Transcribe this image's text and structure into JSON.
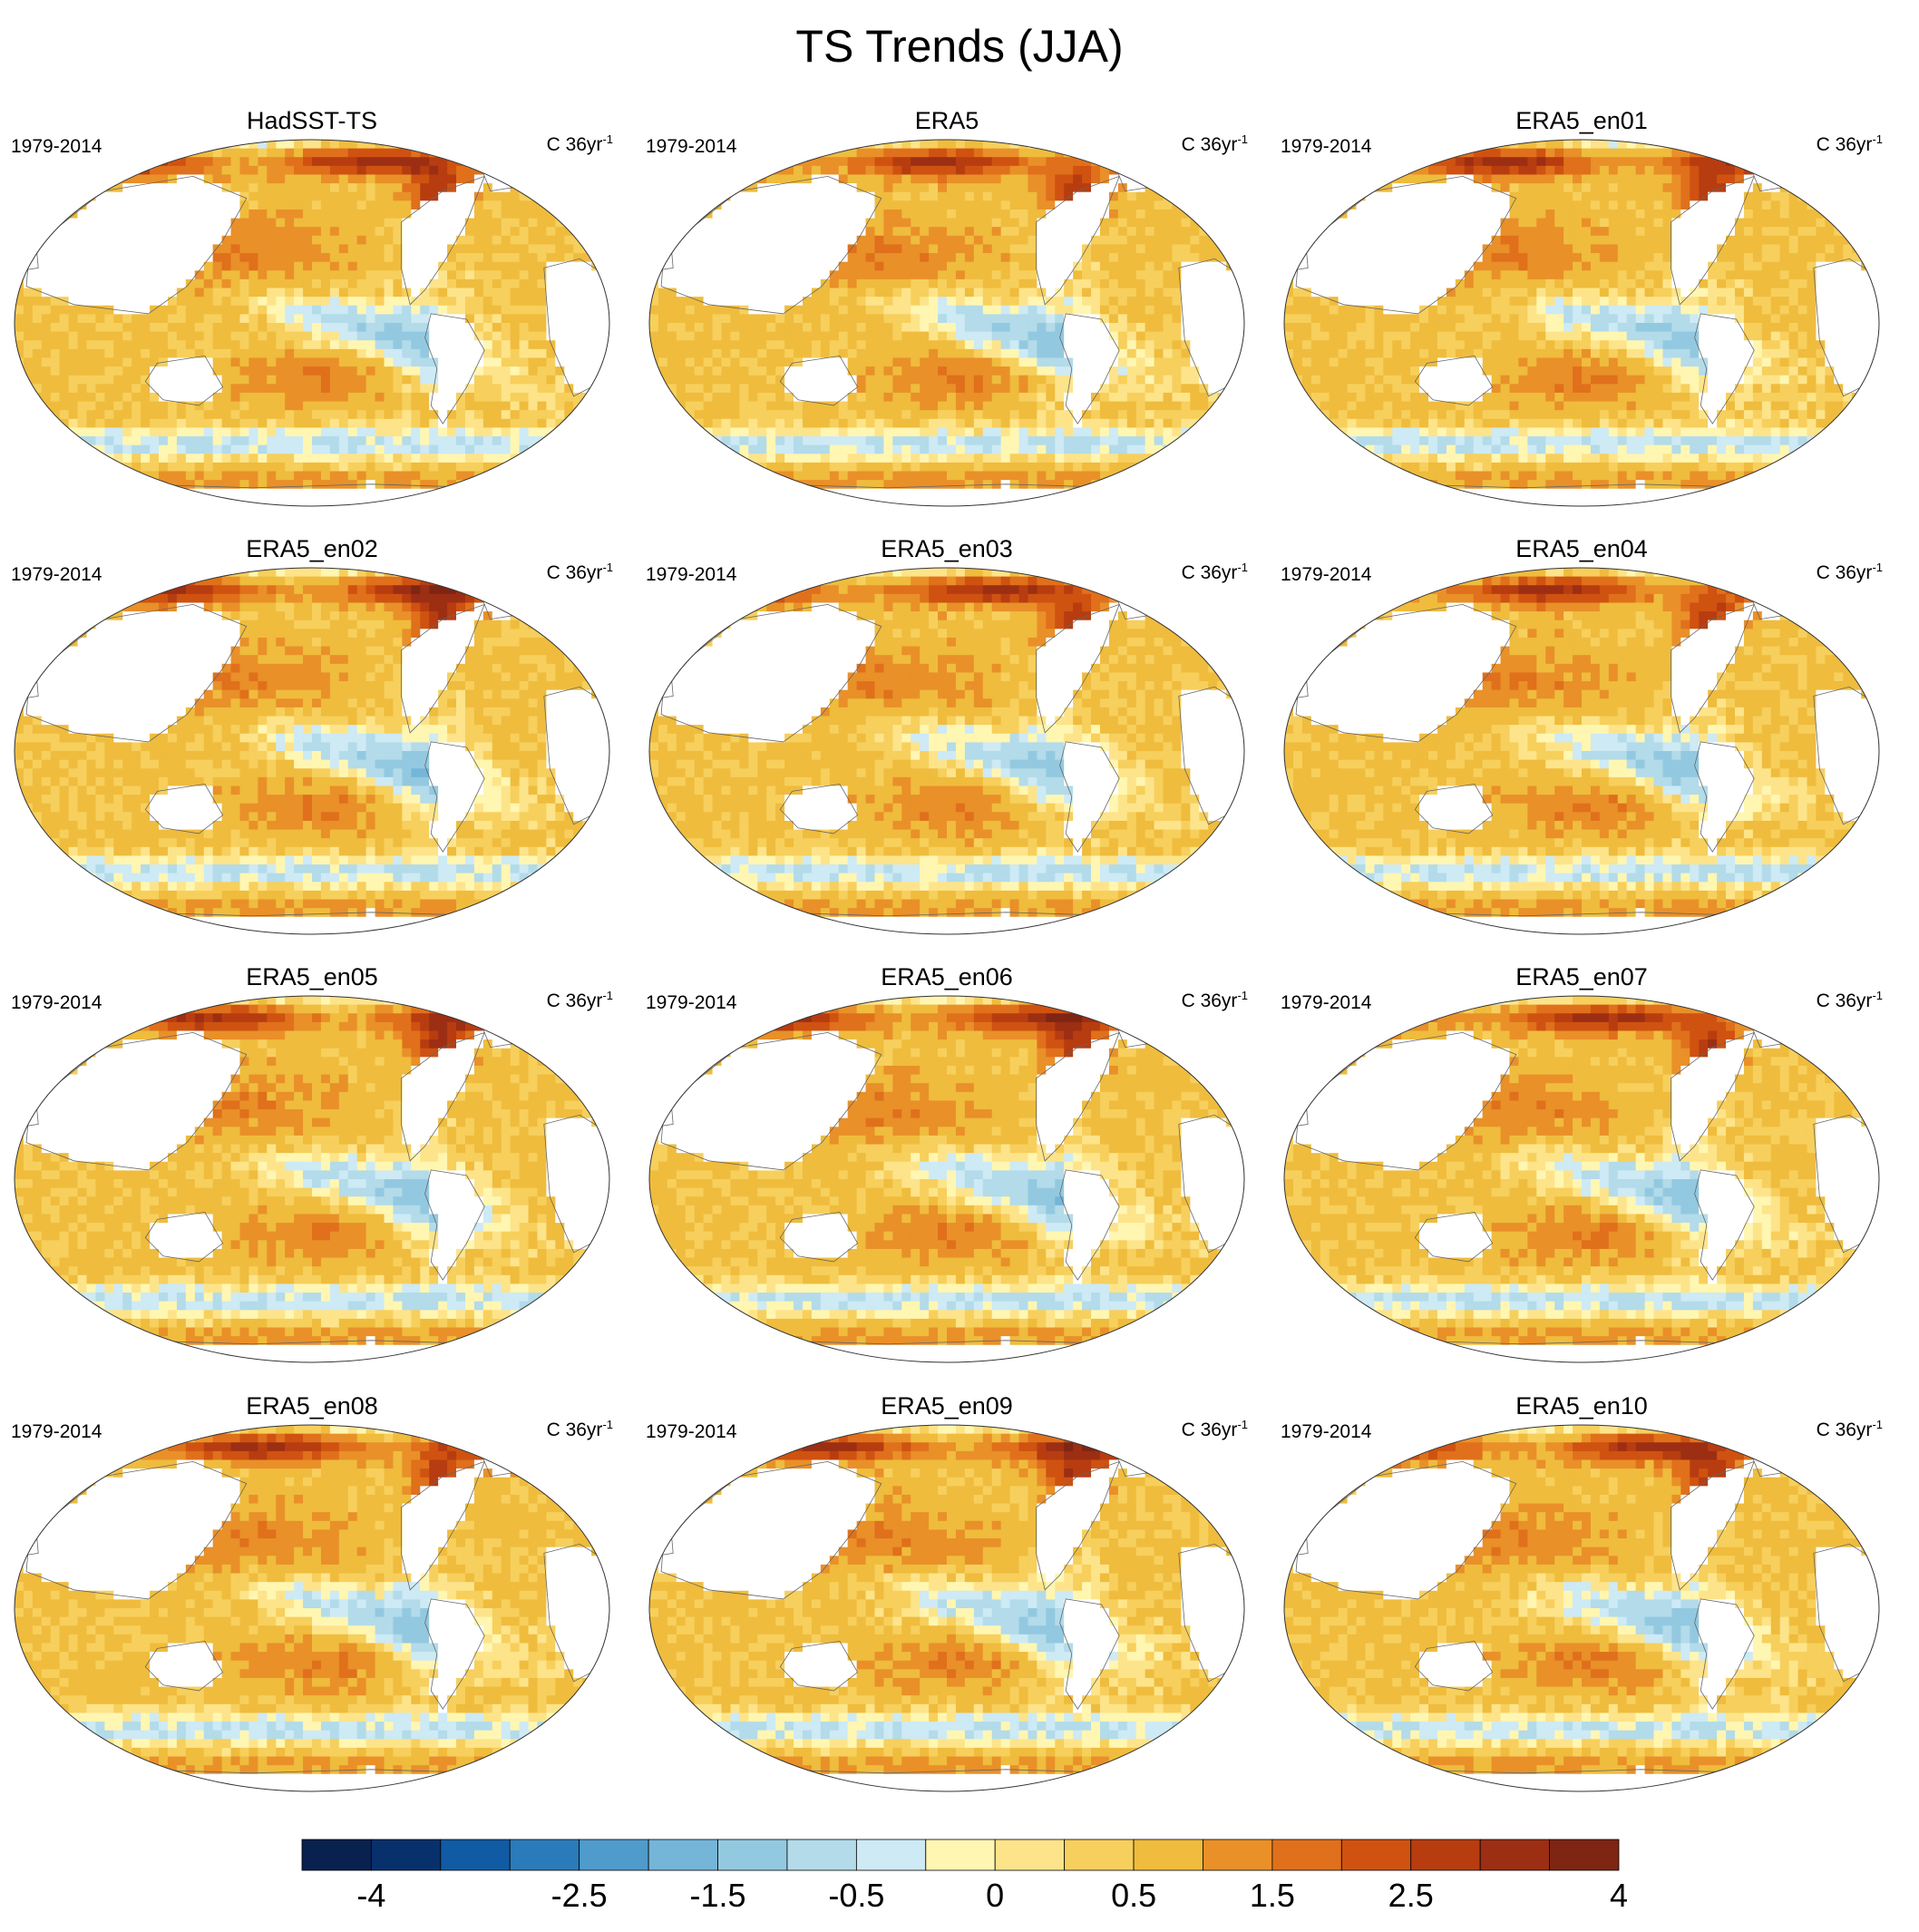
{
  "figure": {
    "title": "TS Trends (JJA)"
  },
  "chart_data": {
    "type": "heatmap",
    "title": "TS Trends (JJA)",
    "projection": "Robinson (Pacific-centered)",
    "period": "1979-2014",
    "units_prefix": "C 36yr",
    "units_exponent": "-1",
    "panels": [
      {
        "title": "HadSST-TS",
        "period": "1979-2014"
      },
      {
        "title": "ERA5",
        "period": "1979-2014"
      },
      {
        "title": "ERA5_en01",
        "period": "1979-2014"
      },
      {
        "title": "ERA5_en02",
        "period": "1979-2014"
      },
      {
        "title": "ERA5_en03",
        "period": "1979-2014"
      },
      {
        "title": "ERA5_en04",
        "period": "1979-2014"
      },
      {
        "title": "ERA5_en05",
        "period": "1979-2014"
      },
      {
        "title": "ERA5_en06",
        "period": "1979-2014"
      },
      {
        "title": "ERA5_en07",
        "period": "1979-2014"
      },
      {
        "title": "ERA5_en08",
        "period": "1979-2014"
      },
      {
        "title": "ERA5_en09",
        "period": "1979-2014"
      },
      {
        "title": "ERA5_en10",
        "period": "1979-2014"
      }
    ],
    "colorbar": {
      "levels": [
        -4,
        -3.5,
        -3,
        -2.5,
        -2,
        -1.5,
        -1,
        -0.5,
        -0.25,
        0,
        0.25,
        0.5,
        1,
        1.5,
        2,
        2.5,
        3,
        3.5,
        4
      ],
      "colors": [
        "#08214f",
        "#08306b",
        "#105ba4",
        "#2b7bba",
        "#4f9bcb",
        "#75b5d8",
        "#93c9e0",
        "#b3dbe9",
        "#cdeaf5",
        "#fff6b2",
        "#fde48a",
        "#f7cf5c",
        "#efbc3d",
        "#e99029",
        "#e0701b",
        "#cf5211",
        "#b73d10",
        "#9c2e13",
        "#7e2514"
      ],
      "tick_labels": [
        "-4",
        "-2.5",
        "-1.5",
        "-0.5",
        "0",
        "0.5",
        "1.5",
        "2.5",
        "4"
      ]
    }
  }
}
